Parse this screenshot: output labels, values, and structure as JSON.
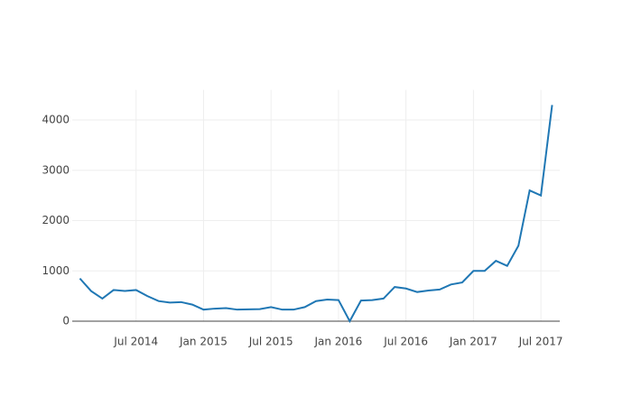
{
  "chart_data": {
    "type": "line",
    "x": [
      "2014-02",
      "2014-03",
      "2014-04",
      "2014-05",
      "2014-06",
      "2014-07",
      "2014-08",
      "2014-09",
      "2014-10",
      "2014-11",
      "2014-12",
      "2015-01",
      "2015-02",
      "2015-03",
      "2015-04",
      "2015-05",
      "2015-06",
      "2015-07",
      "2015-08",
      "2015-09",
      "2015-10",
      "2015-11",
      "2015-12",
      "2016-01",
      "2016-02",
      "2016-03",
      "2016-04",
      "2016-05",
      "2016-06",
      "2016-07",
      "2016-08",
      "2016-09",
      "2016-10",
      "2016-11",
      "2016-12",
      "2017-01",
      "2017-02",
      "2017-03",
      "2017-04",
      "2017-05",
      "2017-06",
      "2017-07",
      "2017-08"
    ],
    "series": [
      {
        "color": "#1f77b4",
        "values": [
          850,
          600,
          450,
          620,
          600,
          620,
          500,
          400,
          370,
          380,
          330,
          230,
          250,
          260,
          230,
          235,
          240,
          280,
          230,
          230,
          280,
          400,
          430,
          420,
          0,
          410,
          420,
          450,
          680,
          650,
          580,
          610,
          630,
          730,
          770,
          1000,
          1000,
          1200,
          1100,
          1500,
          2600,
          2500,
          4300
        ]
      }
    ],
    "xlim": [
      "2014-01",
      "2017-09"
    ],
    "xticks": [
      {
        "value": "2014-07",
        "label": "Jul 2014"
      },
      {
        "value": "2015-01",
        "label": "Jan 2015"
      },
      {
        "value": "2015-07",
        "label": "Jul 2015"
      },
      {
        "value": "2016-01",
        "label": "Jan 2016"
      },
      {
        "value": "2016-07",
        "label": "Jul 2016"
      },
      {
        "value": "2017-01",
        "label": "Jan 2017"
      },
      {
        "value": "2017-07",
        "label": "Jul 2017"
      }
    ],
    "ylim": [
      0,
      4600
    ],
    "yticks": [
      0,
      1000,
      2000,
      3000,
      4000
    ],
    "grid": true
  }
}
